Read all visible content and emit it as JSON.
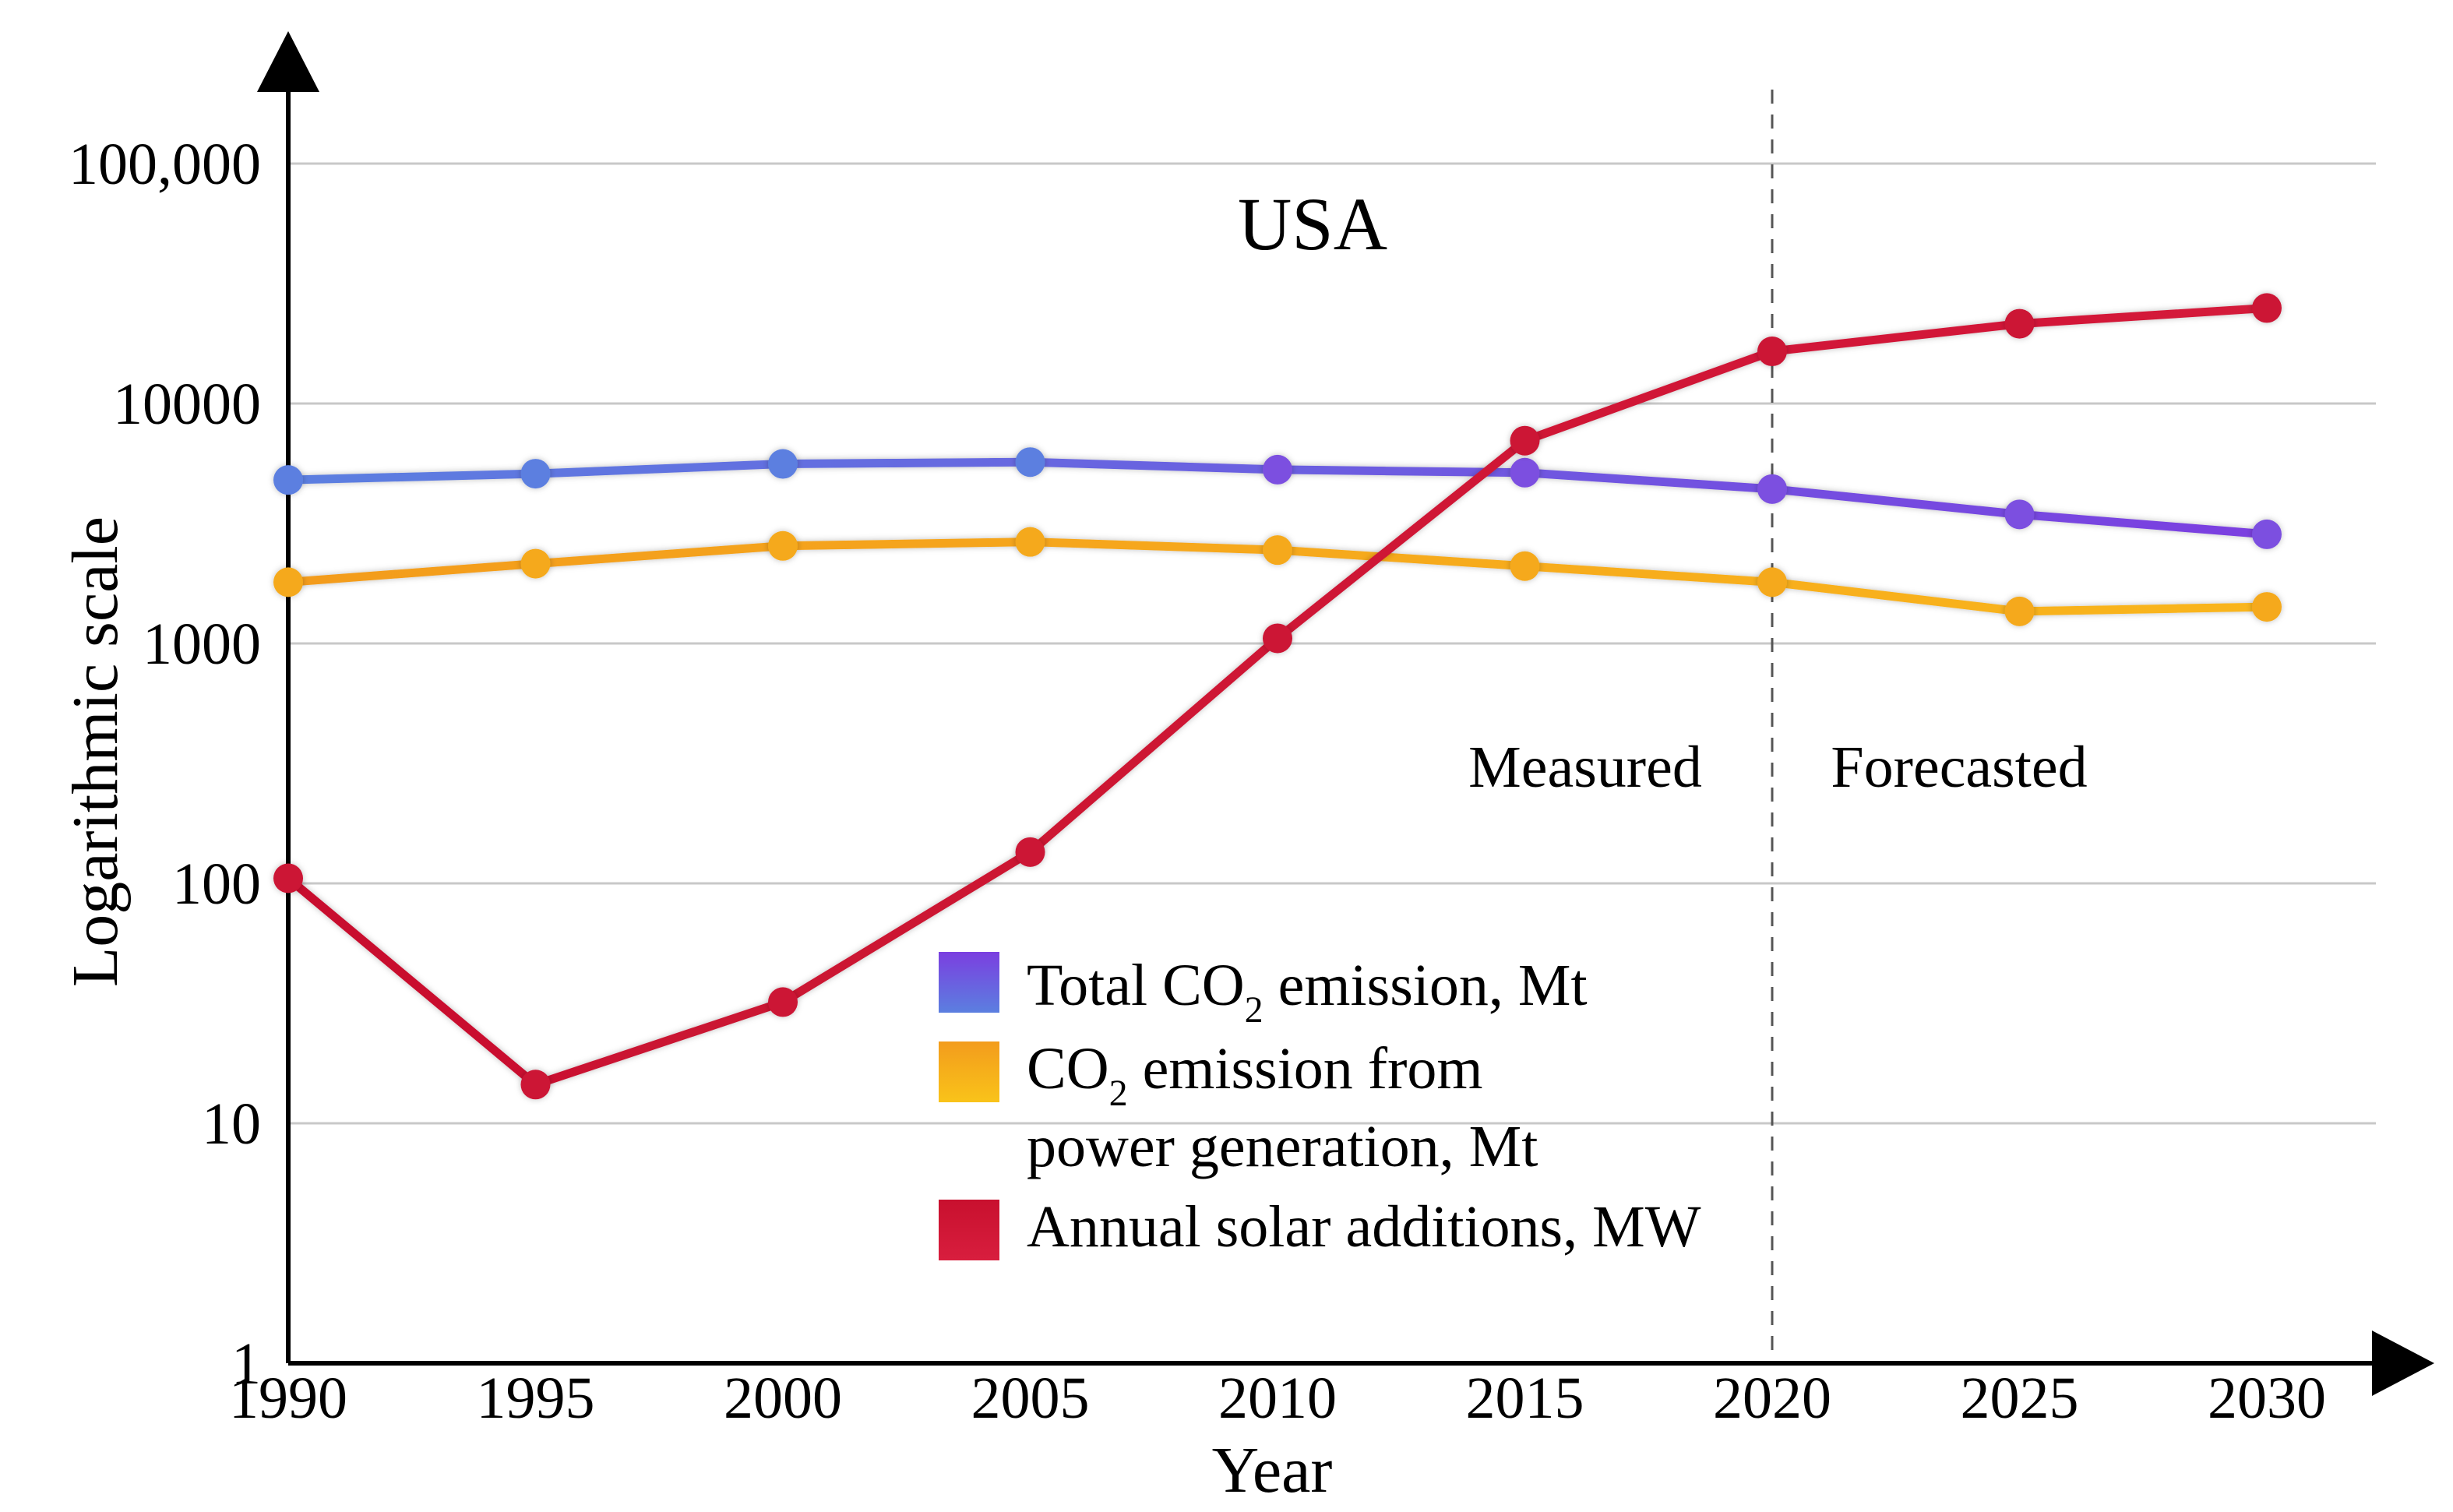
{
  "chart_data": {
    "type": "line",
    "title": "USA",
    "xlabel": "Year",
    "ylabel": "Logarithmic scale",
    "yscale": "log",
    "ylim": [
      1,
      100000
    ],
    "xlim": [
      1990,
      2030
    ],
    "x": [
      1990,
      1995,
      2000,
      2005,
      2010,
      2015,
      2020,
      2025,
      2030
    ],
    "x_tick_labels": [
      "1990",
      "1995",
      "2000",
      "2005",
      "2010",
      "2015",
      "2020",
      "2025",
      "2030"
    ],
    "y_ticks": [
      1,
      10,
      100,
      1000,
      10000,
      100000
    ],
    "y_tick_labels": [
      "1",
      "10",
      "100",
      "1000",
      "10000",
      "100,000"
    ],
    "grid": true,
    "divider": {
      "x": 2020,
      "left_label": "Measured",
      "right_label": "Forecasted"
    },
    "series": [
      {
        "name": "Total CO2 emission, Mt",
        "legend": {
          "main": "Total CO",
          "sub": "2",
          "rest": " emission, Mt"
        },
        "color_top": "#7b3fe0",
        "color_bottom": "#5b7fe0",
        "line_colors": [
          "#5b7fe0",
          "#7b3fe0"
        ],
        "x": [
          1990,
          1995,
          2000,
          2005,
          2010,
          2015,
          2020,
          2025,
          2030
        ],
        "values": [
          4800,
          5100,
          5600,
          5700,
          5300,
          5150,
          4400,
          3450,
          2850
        ]
      },
      {
        "name": "CO2 emission from power generation, Mt",
        "legend": {
          "main": "CO",
          "sub": "2",
          "rest": " emission from",
          "line2": "power generation, Mt"
        },
        "color_top": "#f39c1c",
        "color_bottom": "#f9c31a",
        "line_colors": [
          "#f39c1c",
          "#f9b51a"
        ],
        "x": [
          1990,
          1995,
          2000,
          2005,
          2010,
          2015,
          2020,
          2025,
          2030
        ],
        "values": [
          1800,
          2150,
          2550,
          2650,
          2450,
          2100,
          1800,
          1360,
          1420
        ]
      },
      {
        "name": "Annual solar additions, MW",
        "legend": {
          "main": "Annual solar additions, MW"
        },
        "color_top": "#c8102e",
        "color_bottom": "#d81e3e",
        "line_colors": [
          "#c8102e",
          "#d41a3a"
        ],
        "x": [
          1990,
          1995,
          2000,
          2005,
          2010,
          2015,
          2020,
          2025,
          2030
        ],
        "values": [
          105,
          14.5,
          32,
          135,
          1050,
          7000,
          16500,
          21500,
          25000
        ]
      }
    ]
  }
}
